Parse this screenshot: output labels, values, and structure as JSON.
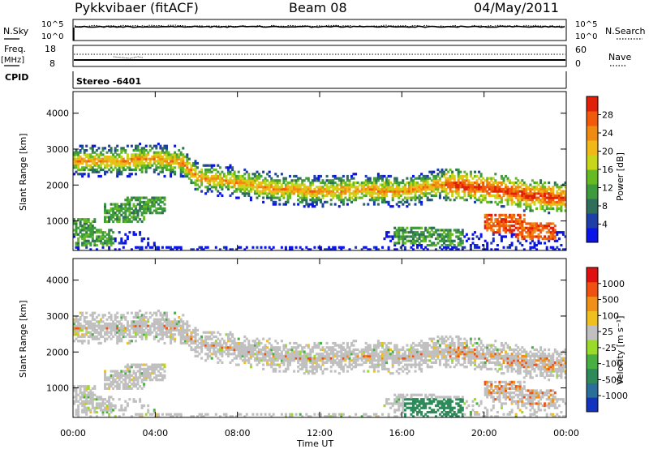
{
  "header": {
    "radar": "Pykkvibaer (fitACF)",
    "beam": "Beam 08",
    "date": "04/May/2011"
  },
  "panels": {
    "nsky_label": "N.Sky",
    "nsky_ticks": [
      "10^5",
      "10^0"
    ],
    "nsearch_label": "N.Search",
    "nsearch_ticks": [
      "10^5",
      "10^0"
    ],
    "freq_label": "Freq.",
    "freq_unit": "[MHz]",
    "freq_ticks": [
      "18",
      "8"
    ],
    "nave_label": "Nave",
    "nave_ticks": [
      "60",
      "0"
    ],
    "cpid_label": "CPID",
    "cpid_value": "Stereo -6401"
  },
  "colorbars": {
    "power": {
      "label": "Power [dB]",
      "ticks": [
        "28",
        "24",
        "20",
        "16",
        "12",
        "8",
        "4"
      ],
      "colors": [
        "#0a14e6",
        "#1f3fa8",
        "#2f6e5a",
        "#3d9a3d",
        "#66bb22",
        "#c8d61a",
        "#f0b818",
        "#f08a10",
        "#f05a0a",
        "#e02008"
      ]
    },
    "velocity": {
      "label": "Velocity [m s⁻¹]",
      "ticks": [
        "1000",
        "500",
        "100",
        "25",
        "-25",
        "-100",
        "-500",
        "-1000"
      ],
      "colors": [
        "#1232c0",
        "#2a6e9a",
        "#2f8a5a",
        "#48b040",
        "#9ada2a",
        "#c0c0c0",
        "#f0c020",
        "#f09018",
        "#f05010",
        "#e01010"
      ]
    }
  },
  "chart_data": [
    {
      "type": "heatmap",
      "title": "",
      "xlabel": "",
      "ylabel": "Slant Range [km]",
      "colorbar": "Power [dB]",
      "xlim": [
        "00:00",
        "00:00"
      ],
      "ylim": [
        180,
        4600
      ],
      "yticks": [
        1000,
        2000,
        3000,
        4000
      ],
      "band_center_km": [
        [
          0,
          2650
        ],
        [
          2,
          2650
        ],
        [
          4,
          2700
        ],
        [
          5.3,
          2600
        ],
        [
          6,
          2200
        ],
        [
          8,
          2050
        ],
        [
          10,
          1850
        ],
        [
          12,
          1800
        ],
        [
          14,
          1850
        ],
        [
          16,
          1800
        ],
        [
          17,
          1900
        ],
        [
          18,
          2000
        ],
        [
          20,
          1900
        ],
        [
          22,
          1700
        ],
        [
          24,
          1600
        ]
      ],
      "secondary_echo_km": [
        [
          0,
          800
        ],
        [
          1,
          500
        ],
        [
          2.5,
          1200
        ],
        [
          3.5,
          1400
        ],
        [
          16.5,
          550
        ],
        [
          18,
          500
        ],
        [
          21,
          900
        ],
        [
          22.5,
          700
        ]
      ]
    },
    {
      "type": "heatmap",
      "title": "",
      "xlabel": "Time UT",
      "ylabel": "Slant Range [km]",
      "colorbar": "Velocity [m s⁻¹]",
      "xlim": [
        "00:00",
        "00:00"
      ],
      "ylim": [
        180,
        4600
      ],
      "yticks": [
        1000,
        2000,
        3000,
        4000
      ],
      "xticks": [
        "00:00",
        "04:00",
        "08:00",
        "12:00",
        "16:00",
        "20:00",
        "00:00"
      ]
    }
  ]
}
